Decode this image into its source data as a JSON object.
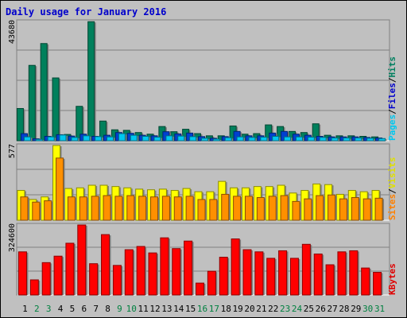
{
  "chart_data": {
    "type": "bar",
    "title": "Daily usage for January 2016",
    "categories": [
      "1",
      "2",
      "3",
      "4",
      "5",
      "6",
      "7",
      "8",
      "9",
      "10",
      "11",
      "12",
      "13",
      "14",
      "15",
      "16",
      "17",
      "18",
      "19",
      "20",
      "21",
      "22",
      "23",
      "24",
      "25",
      "26",
      "27",
      "28",
      "29",
      "30",
      "31"
    ],
    "weekend_days": [
      "2",
      "3",
      "9",
      "10",
      "16",
      "17",
      "23",
      "24",
      "30",
      "31"
    ],
    "grid": true,
    "panels": [
      {
        "name": "hits-files-pages",
        "ymax_label": "43680",
        "ylim": [
          0,
          43680
        ],
        "legend": [
          {
            "label": "Pages",
            "color": "#00c8f0"
          },
          {
            "label": "/",
            "color": "#000000"
          },
          {
            "label": "Files",
            "color": "#0000cc"
          },
          {
            "label": "/",
            "color": "#000000"
          },
          {
            "label": "Hits",
            "color": "#008060"
          }
        ],
        "series": [
          {
            "name": "Hits",
            "color": "#00805c",
            "values": [
              11800,
              27600,
              35600,
              23000,
              2300,
              12600,
              43600,
              7200,
              4000,
              3800,
              3000,
              2400,
              5200,
              3300,
              4200,
              2600,
              1800,
              1800,
              5400,
              2400,
              2600,
              5800,
              5200,
              3400,
              3000,
              6200,
              2000,
              1800,
              1800,
              1600,
              1400
            ]
          },
          {
            "name": "Files",
            "color": "#0040d0",
            "values": [
              2600,
              700,
              1600,
              2200,
              1700,
              2400,
              1600,
              2000,
              3000,
              2700,
              2000,
              1800,
              3300,
              2500,
              2800,
              1500,
              900,
              1500,
              3400,
              1800,
              1800,
              2800,
              3400,
              2400,
              2000,
              1600,
              1400,
              1400,
              1400,
              1200,
              1000
            ]
          },
          {
            "name": "Pages",
            "color": "#00c8f0",
            "values": [
              1400,
              500,
              1400,
              2100,
              1200,
              1800,
              1500,
              1400,
              2600,
              2000,
              1600,
              1300,
              1800,
              1700,
              1500,
              900,
              600,
              1100,
              1400,
              1200,
              1300,
              1600,
              1400,
              1400,
              1300,
              1200,
              1000,
              1000,
              1000,
              900,
              800
            ]
          }
        ]
      },
      {
        "name": "sites-visits",
        "ymax_label": "577",
        "ylim": [
          0,
          577
        ],
        "legend": [
          {
            "label": "Sites",
            "color": "#ff8000"
          },
          {
            "label": "/",
            "color": "#000000"
          },
          {
            "label": "Visits",
            "color": "#e0e000"
          }
        ],
        "series": [
          {
            "name": "Visits",
            "color": "#ffff00",
            "values": [
              230,
              160,
              180,
              577,
              245,
              250,
              270,
              270,
              260,
              250,
              240,
              235,
              240,
              230,
              245,
              220,
              220,
              300,
              250,
              250,
              260,
              260,
              270,
              210,
              230,
              280,
              275,
              200,
              230,
              220,
              230
            ]
          },
          {
            "name": "Sites",
            "color": "#ff9000",
            "values": [
              180,
              140,
              150,
              480,
              180,
              180,
              185,
              190,
              185,
              190,
              185,
              180,
              185,
              180,
              185,
              160,
              160,
              200,
              185,
              185,
              175,
              185,
              190,
              145,
              165,
              190,
              195,
              165,
              175,
              165,
              170
            ]
          }
        ]
      },
      {
        "name": "kbytes",
        "ymax_label": "324600",
        "ylim": [
          0,
          324600
        ],
        "legend": [
          {
            "label": "KBytes",
            "color": "#e00000"
          }
        ],
        "series": [
          {
            "name": "KBytes",
            "color": "#ff0000",
            "values": [
              200000,
              70000,
              150000,
              180000,
              240000,
              324600,
              145000,
              280000,
              137000,
              210000,
              225000,
              195000,
              265000,
              215000,
              250000,
              55000,
              110000,
              175000,
              260000,
              210000,
              200000,
              170000,
              205000,
              170000,
              235000,
              190000,
              140000,
              200000,
              205000,
              125000,
              105000
            ]
          }
        ]
      }
    ]
  }
}
